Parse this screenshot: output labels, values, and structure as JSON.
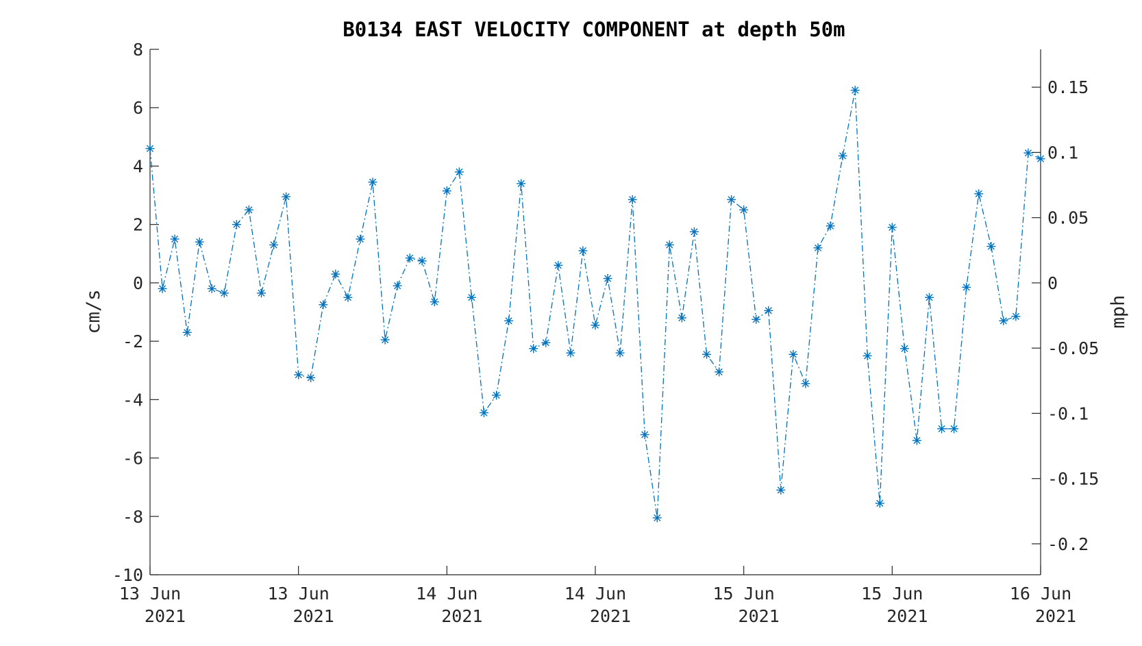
{
  "chart_data": {
    "type": "line",
    "title": "B0134 EAST VELOCITY COMPONENT at depth 50m",
    "ylabel": "cm/s",
    "ylabel_right": "mph",
    "ylim": [
      -10,
      8
    ],
    "yticks": [
      "-10",
      "-8",
      "-6",
      "-4",
      "-2",
      "0",
      "2",
      "4",
      "6",
      "8"
    ],
    "ylim_right": [
      -0.2237,
      0.179
    ],
    "yticks_right": [
      "-0.2",
      "-0.15",
      "-0.1",
      "-0.05",
      "0",
      "0.05",
      "0.1",
      "0.15"
    ],
    "xlim": [
      0,
      72
    ],
    "xticks": [
      {
        "line1": "13 Jun",
        "line2": "2021"
      },
      {
        "line1": "13 Jun",
        "line2": "2021"
      },
      {
        "line1": "14 Jun",
        "line2": "2021"
      },
      {
        "line1": "14 Jun",
        "line2": "2021"
      },
      {
        "line1": "15 Jun",
        "line2": "2021"
      },
      {
        "line1": "15 Jun",
        "line2": "2021"
      },
      {
        "line1": "16 Jun",
        "line2": "2021"
      }
    ],
    "grid": false,
    "line_style": "dash-dot",
    "marker": "asterisk",
    "color": "#0072BD",
    "series": [
      {
        "values": [
          4.6,
          -0.2,
          1.5,
          -1.7,
          1.4,
          -0.2,
          -0.35,
          2.0,
          2.5,
          -0.35,
          1.3,
          2.95,
          -3.15,
          -3.25,
          -0.75,
          0.3,
          -0.5,
          1.5,
          3.45,
          -1.95,
          -0.1,
          0.85,
          0.75,
          -0.65,
          3.15,
          3.8,
          -0.5,
          -4.45,
          -3.85,
          -1.3,
          3.4,
          -2.25,
          -2.05,
          0.6,
          -2.4,
          1.1,
          -1.45,
          0.15,
          -2.4,
          2.85,
          -5.2,
          -8.05,
          1.3,
          -1.2,
          1.75,
          -2.45,
          -3.05,
          2.85,
          2.5,
          -1.25,
          -0.95,
          -7.1,
          -2.45,
          -3.45,
          1.2,
          1.95,
          4.35,
          6.6,
          -2.5,
          -7.55,
          1.9,
          -2.25,
          -5.4,
          -0.5,
          -5.0,
          -5.0,
          -0.15,
          3.05,
          1.25,
          -1.3,
          -1.15,
          4.45,
          4.25
        ]
      }
    ]
  }
}
